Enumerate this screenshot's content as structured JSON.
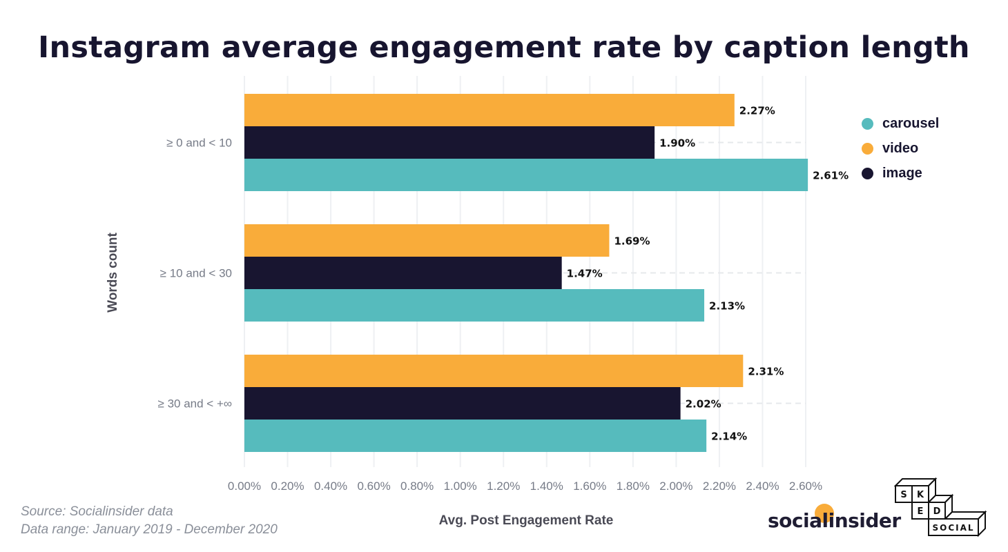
{
  "chart_data": {
    "type": "bar",
    "orientation": "horizontal",
    "title": "Instagram average engagement rate by caption length",
    "xlabel": "Avg. Post Engagement Rate",
    "ylabel": "Words count",
    "categories": [
      "≥ 0 and < 10",
      "≥ 10 and < 30",
      "≥ 30 and < +∞"
    ],
    "series": [
      {
        "name": "video",
        "color": "#f9ac3a",
        "values": [
          2.27,
          1.69,
          2.31
        ],
        "labels": [
          "2.27%",
          "1.69%",
          "2.31%"
        ]
      },
      {
        "name": "image",
        "color": "#181530",
        "values": [
          1.9,
          1.47,
          2.02
        ],
        "labels": [
          "1.90%",
          "1.47%",
          "2.02%"
        ]
      },
      {
        "name": "carousel",
        "color": "#56bbbd",
        "values": [
          2.61,
          2.13,
          2.14
        ],
        "labels": [
          "2.61%",
          "2.13%",
          "2.14%"
        ]
      }
    ],
    "xlim": [
      0,
      2.6
    ],
    "xticks": [
      "0.00%",
      "0.20%",
      "0.40%",
      "0.60%",
      "0.80%",
      "1.00%",
      "1.20%",
      "1.40%",
      "1.60%",
      "1.80%",
      "2.00%",
      "2.20%",
      "2.40%",
      "2.60%"
    ],
    "grid": true,
    "legend_position": "top-right",
    "legend": [
      "carousel",
      "video",
      "image"
    ]
  },
  "source": "Source: Socialinsider data",
  "range": "Data range: January 2019 - December 2020",
  "logos": {
    "socialinsider": "socialinsider",
    "sked": [
      "S",
      "K",
      "E",
      "D",
      "SOCIAL"
    ]
  }
}
